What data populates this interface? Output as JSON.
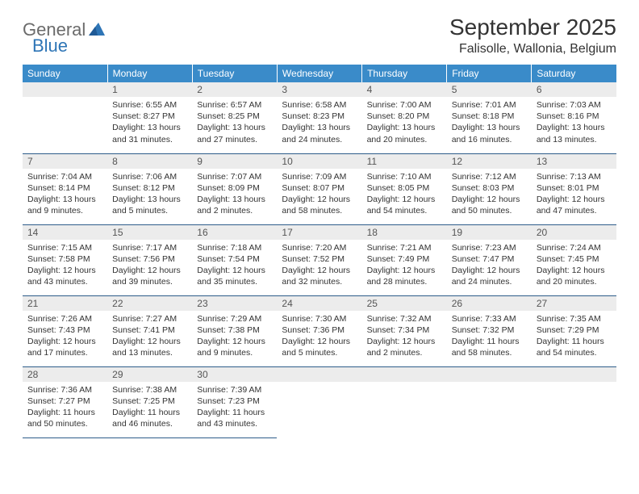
{
  "brand": {
    "name1": "General",
    "name2": "Blue",
    "tri_color": "#2e75b6"
  },
  "title": "September 2025",
  "location": "Falisolle, Wallonia, Belgium",
  "header_bg": "#3a8bc9",
  "header_text_color": "#ffffff",
  "daynum_bg": "#ececec",
  "rule_color": "#2e5d8a",
  "day_names": [
    "Sunday",
    "Monday",
    "Tuesday",
    "Wednesday",
    "Thursday",
    "Friday",
    "Saturday"
  ],
  "weeks": [
    [
      {
        "n": "",
        "sr": "",
        "ss": "",
        "dl": ""
      },
      {
        "n": "1",
        "sr": "Sunrise: 6:55 AM",
        "ss": "Sunset: 8:27 PM",
        "dl": "Daylight: 13 hours and 31 minutes."
      },
      {
        "n": "2",
        "sr": "Sunrise: 6:57 AM",
        "ss": "Sunset: 8:25 PM",
        "dl": "Daylight: 13 hours and 27 minutes."
      },
      {
        "n": "3",
        "sr": "Sunrise: 6:58 AM",
        "ss": "Sunset: 8:23 PM",
        "dl": "Daylight: 13 hours and 24 minutes."
      },
      {
        "n": "4",
        "sr": "Sunrise: 7:00 AM",
        "ss": "Sunset: 8:20 PM",
        "dl": "Daylight: 13 hours and 20 minutes."
      },
      {
        "n": "5",
        "sr": "Sunrise: 7:01 AM",
        "ss": "Sunset: 8:18 PM",
        "dl": "Daylight: 13 hours and 16 minutes."
      },
      {
        "n": "6",
        "sr": "Sunrise: 7:03 AM",
        "ss": "Sunset: 8:16 PM",
        "dl": "Daylight: 13 hours and 13 minutes."
      }
    ],
    [
      {
        "n": "7",
        "sr": "Sunrise: 7:04 AM",
        "ss": "Sunset: 8:14 PM",
        "dl": "Daylight: 13 hours and 9 minutes."
      },
      {
        "n": "8",
        "sr": "Sunrise: 7:06 AM",
        "ss": "Sunset: 8:12 PM",
        "dl": "Daylight: 13 hours and 5 minutes."
      },
      {
        "n": "9",
        "sr": "Sunrise: 7:07 AM",
        "ss": "Sunset: 8:09 PM",
        "dl": "Daylight: 13 hours and 2 minutes."
      },
      {
        "n": "10",
        "sr": "Sunrise: 7:09 AM",
        "ss": "Sunset: 8:07 PM",
        "dl": "Daylight: 12 hours and 58 minutes."
      },
      {
        "n": "11",
        "sr": "Sunrise: 7:10 AM",
        "ss": "Sunset: 8:05 PM",
        "dl": "Daylight: 12 hours and 54 minutes."
      },
      {
        "n": "12",
        "sr": "Sunrise: 7:12 AM",
        "ss": "Sunset: 8:03 PM",
        "dl": "Daylight: 12 hours and 50 minutes."
      },
      {
        "n": "13",
        "sr": "Sunrise: 7:13 AM",
        "ss": "Sunset: 8:01 PM",
        "dl": "Daylight: 12 hours and 47 minutes."
      }
    ],
    [
      {
        "n": "14",
        "sr": "Sunrise: 7:15 AM",
        "ss": "Sunset: 7:58 PM",
        "dl": "Daylight: 12 hours and 43 minutes."
      },
      {
        "n": "15",
        "sr": "Sunrise: 7:17 AM",
        "ss": "Sunset: 7:56 PM",
        "dl": "Daylight: 12 hours and 39 minutes."
      },
      {
        "n": "16",
        "sr": "Sunrise: 7:18 AM",
        "ss": "Sunset: 7:54 PM",
        "dl": "Daylight: 12 hours and 35 minutes."
      },
      {
        "n": "17",
        "sr": "Sunrise: 7:20 AM",
        "ss": "Sunset: 7:52 PM",
        "dl": "Daylight: 12 hours and 32 minutes."
      },
      {
        "n": "18",
        "sr": "Sunrise: 7:21 AM",
        "ss": "Sunset: 7:49 PM",
        "dl": "Daylight: 12 hours and 28 minutes."
      },
      {
        "n": "19",
        "sr": "Sunrise: 7:23 AM",
        "ss": "Sunset: 7:47 PM",
        "dl": "Daylight: 12 hours and 24 minutes."
      },
      {
        "n": "20",
        "sr": "Sunrise: 7:24 AM",
        "ss": "Sunset: 7:45 PM",
        "dl": "Daylight: 12 hours and 20 minutes."
      }
    ],
    [
      {
        "n": "21",
        "sr": "Sunrise: 7:26 AM",
        "ss": "Sunset: 7:43 PM",
        "dl": "Daylight: 12 hours and 17 minutes."
      },
      {
        "n": "22",
        "sr": "Sunrise: 7:27 AM",
        "ss": "Sunset: 7:41 PM",
        "dl": "Daylight: 12 hours and 13 minutes."
      },
      {
        "n": "23",
        "sr": "Sunrise: 7:29 AM",
        "ss": "Sunset: 7:38 PM",
        "dl": "Daylight: 12 hours and 9 minutes."
      },
      {
        "n": "24",
        "sr": "Sunrise: 7:30 AM",
        "ss": "Sunset: 7:36 PM",
        "dl": "Daylight: 12 hours and 5 minutes."
      },
      {
        "n": "25",
        "sr": "Sunrise: 7:32 AM",
        "ss": "Sunset: 7:34 PM",
        "dl": "Daylight: 12 hours and 2 minutes."
      },
      {
        "n": "26",
        "sr": "Sunrise: 7:33 AM",
        "ss": "Sunset: 7:32 PM",
        "dl": "Daylight: 11 hours and 58 minutes."
      },
      {
        "n": "27",
        "sr": "Sunrise: 7:35 AM",
        "ss": "Sunset: 7:29 PM",
        "dl": "Daylight: 11 hours and 54 minutes."
      }
    ],
    [
      {
        "n": "28",
        "sr": "Sunrise: 7:36 AM",
        "ss": "Sunset: 7:27 PM",
        "dl": "Daylight: 11 hours and 50 minutes."
      },
      {
        "n": "29",
        "sr": "Sunrise: 7:38 AM",
        "ss": "Sunset: 7:25 PM",
        "dl": "Daylight: 11 hours and 46 minutes."
      },
      {
        "n": "30",
        "sr": "Sunrise: 7:39 AM",
        "ss": "Sunset: 7:23 PM",
        "dl": "Daylight: 11 hours and 43 minutes."
      },
      {
        "n": "",
        "sr": "",
        "ss": "",
        "dl": ""
      },
      {
        "n": "",
        "sr": "",
        "ss": "",
        "dl": ""
      },
      {
        "n": "",
        "sr": "",
        "ss": "",
        "dl": ""
      },
      {
        "n": "",
        "sr": "",
        "ss": "",
        "dl": ""
      }
    ]
  ]
}
